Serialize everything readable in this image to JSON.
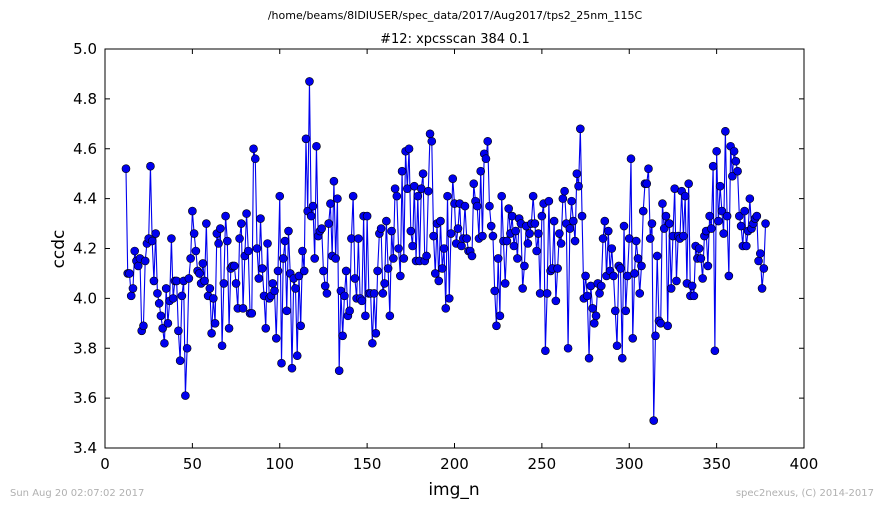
{
  "header": {
    "path": "/home/beams/8IDIUSER/spec_data/2017/Aug2017/tps2_25nm_115C"
  },
  "footer": {
    "timestamp": "Sun Aug 20 02:07:02 2017",
    "credit": "spec2nexus, (C) 2014-2017"
  },
  "colors": {
    "series": "#0000ee",
    "axis": "#000000",
    "footer": "#b0b0b0"
  },
  "chart_data": {
    "type": "line",
    "title": "#12: xpcsscan 384 0.1",
    "xlabel": "img_n",
    "ylabel": "ccdc",
    "xlim": [
      0,
      400
    ],
    "ylim": [
      3.4,
      5.0
    ],
    "xticks": [
      "0",
      "50",
      "100",
      "150",
      "200",
      "250",
      "300",
      "350",
      "400"
    ],
    "yticks": [
      "3.4",
      "3.6",
      "3.8",
      "4.0",
      "4.2",
      "4.4",
      "4.6",
      "4.8",
      "5.0"
    ],
    "grid": false,
    "legend": "none",
    "marker": "circle",
    "series": [
      {
        "x_start": 12,
        "x_step": 1,
        "y": [
          4.52,
          4.1,
          4.1,
          4.01,
          4.04,
          4.19,
          4.15,
          4.13,
          4.16,
          3.87,
          3.89,
          4.15,
          4.22,
          4.24,
          4.53,
          4.23,
          4.07,
          4.26,
          4.02,
          3.98,
          3.93,
          3.88,
          3.82,
          4.04,
          3.9,
          3.99,
          4.24,
          4.0,
          4.07,
          4.07,
          3.87,
          3.75,
          4.01,
          4.07,
          3.61,
          3.8,
          4.08,
          4.16,
          4.35,
          4.26,
          4.19,
          4.11,
          4.1,
          4.06,
          4.14,
          4.07,
          4.3,
          4.01,
          4.04,
          3.86,
          4.0,
          3.9,
          4.26,
          4.22,
          4.28,
          3.81,
          4.06,
          4.33,
          4.23,
          3.88,
          4.12,
          4.13,
          4.13,
          4.06,
          3.96,
          4.24,
          4.3,
          3.96,
          4.17,
          4.34,
          4.19,
          3.94,
          3.94,
          4.6,
          4.56,
          4.2,
          4.08,
          4.32,
          4.12,
          4.01,
          3.88,
          4.22,
          4.0,
          4.01,
          4.06,
          4.03,
          3.84,
          4.11,
          4.41,
          3.74,
          4.16,
          4.23,
          3.95,
          4.27,
          4.1,
          3.72,
          4.08,
          4.04,
          3.77,
          4.09,
          3.89,
          4.19,
          4.11,
          4.64,
          4.35,
          4.87,
          4.33,
          4.37,
          4.16,
          4.61,
          4.25,
          4.27,
          4.28,
          4.11,
          4.05,
          4.02,
          4.3,
          4.38,
          4.17,
          4.47,
          4.16,
          4.4,
          3.71,
          4.03,
          3.85,
          4.01,
          4.11,
          3.93,
          3.95,
          4.24,
          4.41,
          4.08,
          4.0,
          4.24,
          4.0,
          3.99,
          4.33,
          3.93,
          4.33,
          4.02,
          4.02,
          3.82,
          4.02,
          3.86,
          4.11,
          4.26,
          4.28,
          4.02,
          4.06,
          4.31,
          4.12,
          3.93,
          4.27,
          4.16,
          4.44,
          4.41,
          4.2,
          4.09,
          4.51,
          4.16,
          4.59,
          4.44,
          4.6,
          4.27,
          4.21,
          4.45,
          4.15,
          4.41,
          4.15,
          4.44,
          4.5,
          4.15,
          4.17,
          4.43,
          4.66,
          4.63,
          4.25,
          4.1,
          4.3,
          4.07,
          4.31,
          4.12,
          4.2,
          3.96,
          4.41,
          4.0,
          4.26,
          4.48,
          4.38,
          4.22,
          4.28,
          4.38,
          4.21,
          4.24,
          4.37,
          4.24,
          4.19,
          4.19,
          4.17,
          4.46,
          4.39,
          4.37,
          4.24,
          4.51,
          4.25,
          4.58,
          4.56,
          4.63,
          4.37,
          4.29,
          4.25,
          4.03,
          3.89,
          4.16,
          3.93,
          4.41,
          4.23,
          4.06,
          4.23,
          4.36,
          4.26,
          4.33,
          4.21,
          4.27,
          4.16,
          4.32,
          4.3,
          4.04,
          4.13,
          4.29,
          4.22,
          4.26,
          4.3,
          4.41,
          4.3,
          4.19,
          4.26,
          4.02,
          4.33,
          4.38,
          3.79,
          4.02,
          4.39,
          4.11,
          4.12,
          4.31,
          3.99,
          4.12,
          4.26,
          4.22,
          4.4,
          4.43,
          4.3,
          3.8,
          4.28,
          4.39,
          4.31,
          4.23,
          4.5,
          4.45,
          4.68,
          4.33,
          4.0,
          4.09,
          4.01,
          3.76,
          4.05,
          3.96,
          3.9,
          3.93,
          4.06,
          4.02,
          4.05,
          4.24,
          4.31,
          4.09,
          4.27,
          4.11,
          4.2,
          4.09,
          3.95,
          3.81,
          4.13,
          4.12,
          3.76,
          4.29,
          3.95,
          4.09,
          4.24,
          4.56,
          3.84,
          4.1,
          4.23,
          4.16,
          4.02,
          4.13,
          4.35,
          4.46,
          4.46,
          4.52,
          4.24,
          4.3,
          3.51,
          3.85,
          4.17,
          3.91,
          3.9,
          4.38,
          4.28,
          4.33,
          3.89,
          4.3,
          4.04,
          4.25,
          4.44,
          4.07,
          4.25,
          4.24,
          4.43,
          4.25,
          4.41,
          4.06,
          4.46,
          4.01,
          4.05,
          4.01,
          4.21,
          4.16,
          4.2,
          4.16,
          4.08,
          4.25,
          4.27,
          4.13,
          4.33,
          4.28,
          4.53,
          3.79,
          4.59,
          4.31,
          4.45,
          4.35,
          4.26,
          4.67,
          4.33,
          4.09,
          4.61,
          4.49,
          4.59,
          4.55,
          4.51,
          4.33,
          4.29,
          4.21,
          4.35,
          4.21,
          4.27,
          4.4,
          4.28,
          4.3,
          4.32,
          4.33,
          4.15,
          4.18,
          4.04,
          4.12,
          4.3
        ]
      }
    ]
  }
}
